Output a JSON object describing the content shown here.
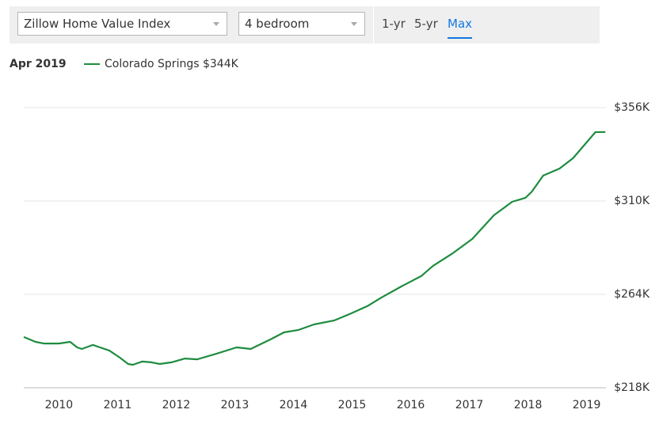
{
  "controls": {
    "metric": "Zillow Home Value Index",
    "bedrooms": "4 bedroom",
    "ranges": [
      "1-yr",
      "5-yr",
      "Max"
    ],
    "active_range": 2
  },
  "chart_data": {
    "type": "line",
    "date_label": "Apr 2019",
    "legend_value": {
      "value": 344000,
      "label": "$344K"
    },
    "x": [
      2009.4,
      2009.6,
      2009.74,
      2010.0,
      2010.19,
      2010.31,
      2010.39,
      2010.58,
      2010.86,
      2011.04,
      2011.18,
      2011.26,
      2011.42,
      2011.58,
      2011.72,
      2011.92,
      2012.15,
      2012.36,
      2012.69,
      2013.03,
      2013.27,
      2013.61,
      2013.84,
      2014.09,
      2014.35,
      2014.69,
      2014.96,
      2015.26,
      2015.5,
      2015.84,
      2016.18,
      2016.38,
      2016.72,
      2017.05,
      2017.42,
      2017.73,
      2017.96,
      2018.07,
      2018.26,
      2018.54,
      2018.77,
      2019.15,
      2019.32
    ],
    "series": [
      {
        "name": "Colorado Springs",
        "color": "#1e8c3f",
        "values": [
          243000,
          240600,
          239800,
          239800,
          240600,
          237900,
          237100,
          239100,
          236300,
          232800,
          229700,
          229300,
          230900,
          230500,
          229700,
          230500,
          232400,
          232000,
          234800,
          237900,
          237100,
          241800,
          245300,
          246500,
          249200,
          251100,
          254300,
          258200,
          262400,
          267900,
          273000,
          278000,
          284300,
          291300,
          303000,
          309600,
          311600,
          314700,
          322500,
          326000,
          331100,
          343900,
          344000
        ]
      }
    ],
    "xlim": [
      2009.4,
      2019.33
    ],
    "xticks": [
      2010,
      2011,
      2012,
      2013,
      2014,
      2015,
      2016,
      2017,
      2018,
      2019
    ],
    "ylim": [
      218000,
      356000
    ],
    "yticks": [
      {
        "value": 218000,
        "label": "$218K"
      },
      {
        "value": 264000,
        "label": "$264K"
      },
      {
        "value": 310000,
        "label": "$310K"
      },
      {
        "value": 356000,
        "label": "$356K"
      }
    ],
    "grid": true
  }
}
